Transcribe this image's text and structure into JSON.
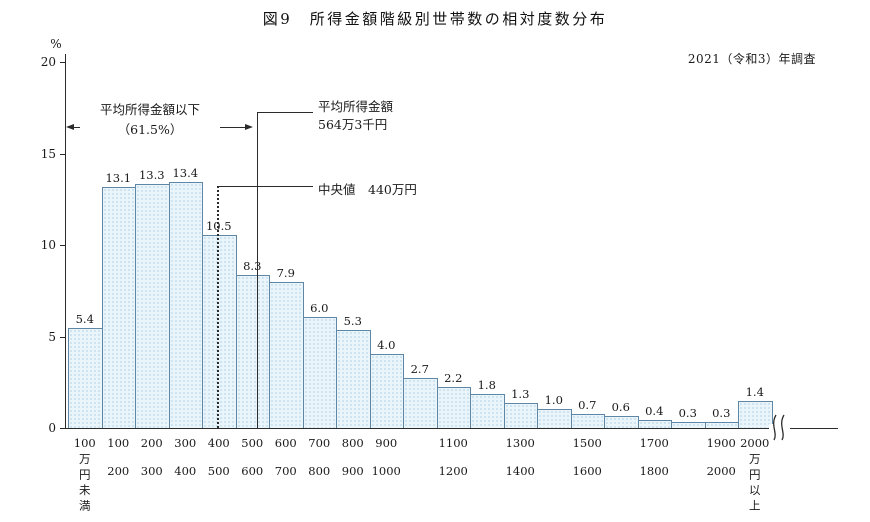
{
  "title": "図9　所得金額階級別世帯数の相対度数分布",
  "survey_note": "2021（令和3）年調査",
  "y_axis_unit": "%",
  "annotations": {
    "below_mean_line1": "平均所得金額以下",
    "below_mean_line2": "（61.5%）",
    "mean_line1": "平均所得金額",
    "mean_line2": "564万3千円",
    "median": "中央値　440万円"
  },
  "chart_data": {
    "type": "bar",
    "title": "図9　所得金額階級別世帯数の相対度数分布",
    "subtitle": "2021（令和3）年調査",
    "xlabel": "",
    "ylabel": "%",
    "ylim": [
      0,
      20
    ],
    "y_ticks": [
      0,
      5,
      10,
      15,
      20
    ],
    "grid": false,
    "legend": "none",
    "categories": [
      "100万円未満",
      "100〜200",
      "200〜300",
      "300〜400",
      "400〜500",
      "500〜600",
      "600〜700",
      "700〜800",
      "800〜900",
      "900〜1000",
      "1000〜1100",
      "1100〜1200",
      "1200〜1300",
      "1300〜1400",
      "1400〜1500",
      "1500〜1600",
      "1600〜1700",
      "1700〜1800",
      "1800〜1900",
      "1900〜2000",
      "2000万円以上"
    ],
    "values": [
      5.4,
      13.1,
      13.3,
      13.4,
      10.5,
      8.3,
      7.9,
      6.0,
      5.3,
      4.0,
      2.7,
      2.2,
      1.8,
      1.3,
      1.0,
      0.7,
      0.6,
      0.4,
      0.3,
      0.3,
      1.4
    ],
    "x_tick_top": [
      "100",
      "100",
      "200",
      "300",
      "400",
      "500",
      "600",
      "700",
      "800",
      "900",
      "",
      "1100",
      "",
      "1300",
      "",
      "1500",
      "",
      "1700",
      "",
      "1900",
      "2000"
    ],
    "x_tick_bottom": [
      "",
      "200",
      "300",
      "400",
      "500",
      "600",
      "700",
      "800",
      "900",
      "1000",
      "",
      "1200",
      "",
      "1400",
      "",
      "1600",
      "",
      "1800",
      "",
      "2000",
      ""
    ],
    "x_tick_vertical": [
      "万円未満",
      "",
      "",
      "",
      "",
      "",
      "",
      "",
      "",
      "",
      "",
      "",
      "",
      "",
      "",
      "",
      "",
      "",
      "",
      "",
      "万円以上"
    ],
    "mean_value_man_yen": 564.3,
    "median_value_man_yen": 440,
    "below_mean_share_percent": 61.5,
    "colors": {
      "bar_fill": "#e9f4fb",
      "bar_dot": "#8fbdd6",
      "bar_border": "#5f87a5",
      "axis": "#2b2b2b",
      "text": "#1a1a1a"
    }
  }
}
